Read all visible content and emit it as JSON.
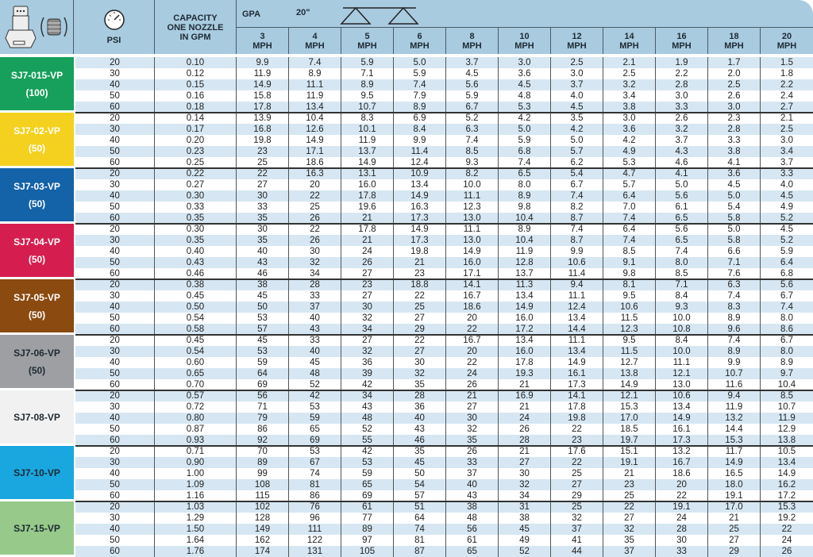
{
  "header": {
    "nozzle_icon": "nozzle-with-strainer-icon",
    "psi_icon": "pressure-gauge-icon",
    "psi": "PSI",
    "capacity": [
      "CAPACITY",
      "ONE NOZZLE",
      "IN GPM"
    ],
    "gpa": "GPA",
    "spacing": "20\"",
    "speeds": [
      "3",
      "4",
      "5",
      "6",
      "8",
      "10",
      "12",
      "14",
      "16",
      "18",
      "20"
    ],
    "speed_unit": "MPH"
  },
  "colors": {
    "header_bg": "#a8cbe0",
    "stripe": "#d6e7f3"
  },
  "groups": [
    {
      "name": "SJ7-015-VP",
      "mesh": "(100)",
      "color": "#16a05b",
      "text": "#ffffff",
      "rows": [
        [
          "20",
          "0.10",
          "9.9",
          "7.4",
          "5.9",
          "5.0",
          "3.7",
          "3.0",
          "2.5",
          "2.1",
          "1.9",
          "1.7",
          "1.5"
        ],
        [
          "30",
          "0.12",
          "11.9",
          "8.9",
          "7.1",
          "5.9",
          "4.5",
          "3.6",
          "3.0",
          "2.5",
          "2.2",
          "2.0",
          "1.8"
        ],
        [
          "40",
          "0.15",
          "14.9",
          "11.1",
          "8.9",
          "7.4",
          "5.6",
          "4.5",
          "3.7",
          "3.2",
          "2.8",
          "2.5",
          "2.2"
        ],
        [
          "50",
          "0.16",
          "15.8",
          "11.9",
          "9.5",
          "7.9",
          "5.9",
          "4.8",
          "4.0",
          "3.4",
          "3.0",
          "2.6",
          "2.4"
        ],
        [
          "60",
          "0.18",
          "17.8",
          "13.4",
          "10.7",
          "8.9",
          "6.7",
          "5.3",
          "4.5",
          "3.8",
          "3.3",
          "3.0",
          "2.7"
        ]
      ]
    },
    {
      "name": "SJ7-02-VP",
      "mesh": "(50)",
      "color": "#f4d11e",
      "text": "#ffffff",
      "rows": [
        [
          "20",
          "0.14",
          "13.9",
          "10.4",
          "8.3",
          "6.9",
          "5.2",
          "4.2",
          "3.5",
          "3.0",
          "2.6",
          "2.3",
          "2.1"
        ],
        [
          "30",
          "0.17",
          "16.8",
          "12.6",
          "10.1",
          "8.4",
          "6.3",
          "5.0",
          "4.2",
          "3.6",
          "3.2",
          "2.8",
          "2.5"
        ],
        [
          "40",
          "0.20",
          "19.8",
          "14.9",
          "11.9",
          "9.9",
          "7.4",
          "5.9",
          "5.0",
          "4.2",
          "3.7",
          "3.3",
          "3.0"
        ],
        [
          "50",
          "0.23",
          "23",
          "17.1",
          "13.7",
          "11.4",
          "8.5",
          "6.8",
          "5.7",
          "4.9",
          "4.3",
          "3.8",
          "3.4"
        ],
        [
          "60",
          "0.25",
          "25",
          "18.6",
          "14.9",
          "12.4",
          "9.3",
          "7.4",
          "6.2",
          "5.3",
          "4.6",
          "4.1",
          "3.7"
        ]
      ]
    },
    {
      "name": "SJ7-03-VP",
      "mesh": "(50)",
      "color": "#1462a8",
      "text": "#ffffff",
      "rows": [
        [
          "20",
          "0.22",
          "22",
          "16.3",
          "13.1",
          "10.9",
          "8.2",
          "6.5",
          "5.4",
          "4.7",
          "4.1",
          "3.6",
          "3.3"
        ],
        [
          "30",
          "0.27",
          "27",
          "20",
          "16.0",
          "13.4",
          "10.0",
          "8.0",
          "6.7",
          "5.7",
          "5.0",
          "4.5",
          "4.0"
        ],
        [
          "40",
          "0.30",
          "30",
          "22",
          "17.8",
          "14.9",
          "11.1",
          "8.9",
          "7.4",
          "6.4",
          "5.6",
          "5.0",
          "4.5"
        ],
        [
          "50",
          "0.33",
          "33",
          "25",
          "19.6",
          "16.3",
          "12.3",
          "9.8",
          "8.2",
          "7.0",
          "6.1",
          "5.4",
          "4.9"
        ],
        [
          "60",
          "0.35",
          "35",
          "26",
          "21",
          "17.3",
          "13.0",
          "10.4",
          "8.7",
          "7.4",
          "6.5",
          "5.8",
          "5.2"
        ]
      ]
    },
    {
      "name": "SJ7-04-VP",
      "mesh": "(50)",
      "color": "#d51e4f",
      "text": "#ffffff",
      "rows": [
        [
          "20",
          "0.30",
          "30",
          "22",
          "17.8",
          "14.9",
          "11.1",
          "8.9",
          "7.4",
          "6.4",
          "5.6",
          "5.0",
          "4.5"
        ],
        [
          "30",
          "0.35",
          "35",
          "26",
          "21",
          "17.3",
          "13.0",
          "10.4",
          "8.7",
          "7.4",
          "6.5",
          "5.8",
          "5.2"
        ],
        [
          "40",
          "0.40",
          "40",
          "30",
          "24",
          "19.8",
          "14.9",
          "11.9",
          "9.9",
          "8.5",
          "7.4",
          "6.6",
          "5.9"
        ],
        [
          "50",
          "0.43",
          "43",
          "32",
          "26",
          "21",
          "16.0",
          "12.8",
          "10.6",
          "9.1",
          "8.0",
          "7.1",
          "6.4"
        ],
        [
          "60",
          "0.46",
          "46",
          "34",
          "27",
          "23",
          "17.1",
          "13.7",
          "11.4",
          "9.8",
          "8.5",
          "7.6",
          "6.8"
        ]
      ]
    },
    {
      "name": "SJ7-05-VP",
      "mesh": "(50)",
      "color": "#8a4a10",
      "text": "#ffffff",
      "rows": [
        [
          "20",
          "0.38",
          "38",
          "28",
          "23",
          "18.8",
          "14.1",
          "11.3",
          "9.4",
          "8.1",
          "7.1",
          "6.3",
          "5.6"
        ],
        [
          "30",
          "0.45",
          "45",
          "33",
          "27",
          "22",
          "16.7",
          "13.4",
          "11.1",
          "9.5",
          "8.4",
          "7.4",
          "6.7"
        ],
        [
          "40",
          "0.50",
          "50",
          "37",
          "30",
          "25",
          "18.6",
          "14.9",
          "12.4",
          "10.6",
          "9.3",
          "8.3",
          "7.4"
        ],
        [
          "50",
          "0.54",
          "53",
          "40",
          "32",
          "27",
          "20",
          "16.0",
          "13.4",
          "11.5",
          "10.0",
          "8.9",
          "8.0"
        ],
        [
          "60",
          "0.58",
          "57",
          "43",
          "34",
          "29",
          "22",
          "17.2",
          "14.4",
          "12.3",
          "10.8",
          "9.6",
          "8.6"
        ]
      ]
    },
    {
      "name": "SJ7-06-VP",
      "mesh": "(50)",
      "color": "#9d9fa2",
      "text": "#1e2a33",
      "rows": [
        [
          "20",
          "0.45",
          "45",
          "33",
          "27",
          "22",
          "16.7",
          "13.4",
          "11.1",
          "9.5",
          "8.4",
          "7.4",
          "6.7"
        ],
        [
          "30",
          "0.54",
          "53",
          "40",
          "32",
          "27",
          "20",
          "16.0",
          "13.4",
          "11.5",
          "10.0",
          "8.9",
          "8.0"
        ],
        [
          "40",
          "0.60",
          "59",
          "45",
          "36",
          "30",
          "22",
          "17.8",
          "14.9",
          "12.7",
          "11.1",
          "9.9",
          "8.9"
        ],
        [
          "50",
          "0.65",
          "64",
          "48",
          "39",
          "32",
          "24",
          "19.3",
          "16.1",
          "13.8",
          "12.1",
          "10.7",
          "9.7"
        ],
        [
          "60",
          "0.70",
          "69",
          "52",
          "42",
          "35",
          "26",
          "21",
          "17.3",
          "14.9",
          "13.0",
          "11.6",
          "10.4"
        ]
      ]
    },
    {
      "name": "SJ7-08-VP",
      "mesh": "",
      "color": "#f1f1f1",
      "text": "#1e2a33",
      "rows": [
        [
          "20",
          "0.57",
          "56",
          "42",
          "34",
          "28",
          "21",
          "16.9",
          "14.1",
          "12.1",
          "10.6",
          "9.4",
          "8.5"
        ],
        [
          "30",
          "0.72",
          "71",
          "53",
          "43",
          "36",
          "27",
          "21",
          "17.8",
          "15.3",
          "13.4",
          "11.9",
          "10.7"
        ],
        [
          "40",
          "0.80",
          "79",
          "59",
          "48",
          "40",
          "30",
          "24",
          "19.8",
          "17.0",
          "14.9",
          "13.2",
          "11.9"
        ],
        [
          "50",
          "0.87",
          "86",
          "65",
          "52",
          "43",
          "32",
          "26",
          "22",
          "18.5",
          "16.1",
          "14.4",
          "12.9"
        ],
        [
          "60",
          "0.93",
          "92",
          "69",
          "55",
          "46",
          "35",
          "28",
          "23",
          "19.7",
          "17.3",
          "15.3",
          "13.8"
        ]
      ]
    },
    {
      "name": "SJ7-10-VP",
      "mesh": "",
      "color": "#1aa7e0",
      "text": "#1e2a33",
      "rows": [
        [
          "20",
          "0.71",
          "70",
          "53",
          "42",
          "35",
          "26",
          "21",
          "17.6",
          "15.1",
          "13.2",
          "11.7",
          "10.5"
        ],
        [
          "30",
          "0.90",
          "89",
          "67",
          "53",
          "45",
          "33",
          "27",
          "22",
          "19.1",
          "16.7",
          "14.9",
          "13.4"
        ],
        [
          "40",
          "1.00",
          "99",
          "74",
          "59",
          "50",
          "37",
          "30",
          "25",
          "21",
          "18.6",
          "16.5",
          "14.9"
        ],
        [
          "50",
          "1.09",
          "108",
          "81",
          "65",
          "54",
          "40",
          "32",
          "27",
          "23",
          "20",
          "18.0",
          "16.2"
        ],
        [
          "60",
          "1.16",
          "115",
          "86",
          "69",
          "57",
          "43",
          "34",
          "29",
          "25",
          "22",
          "19.1",
          "17.2"
        ]
      ]
    },
    {
      "name": "SJ7-15-VP",
      "mesh": "",
      "color": "#96c98a",
      "text": "#1e2a33",
      "rows": [
        [
          "20",
          "1.03",
          "102",
          "76",
          "61",
          "51",
          "38",
          "31",
          "25",
          "22",
          "19.1",
          "17.0",
          "15.3"
        ],
        [
          "30",
          "1.29",
          "128",
          "96",
          "77",
          "64",
          "48",
          "38",
          "32",
          "27",
          "24",
          "21",
          "19.2"
        ],
        [
          "40",
          "1.50",
          "149",
          "111",
          "89",
          "74",
          "56",
          "45",
          "37",
          "32",
          "28",
          "25",
          "22"
        ],
        [
          "50",
          "1.64",
          "162",
          "122",
          "97",
          "81",
          "61",
          "49",
          "41",
          "35",
          "30",
          "27",
          "24"
        ],
        [
          "60",
          "1.76",
          "174",
          "131",
          "105",
          "87",
          "65",
          "52",
          "44",
          "37",
          "33",
          "29",
          "26"
        ]
      ]
    }
  ]
}
